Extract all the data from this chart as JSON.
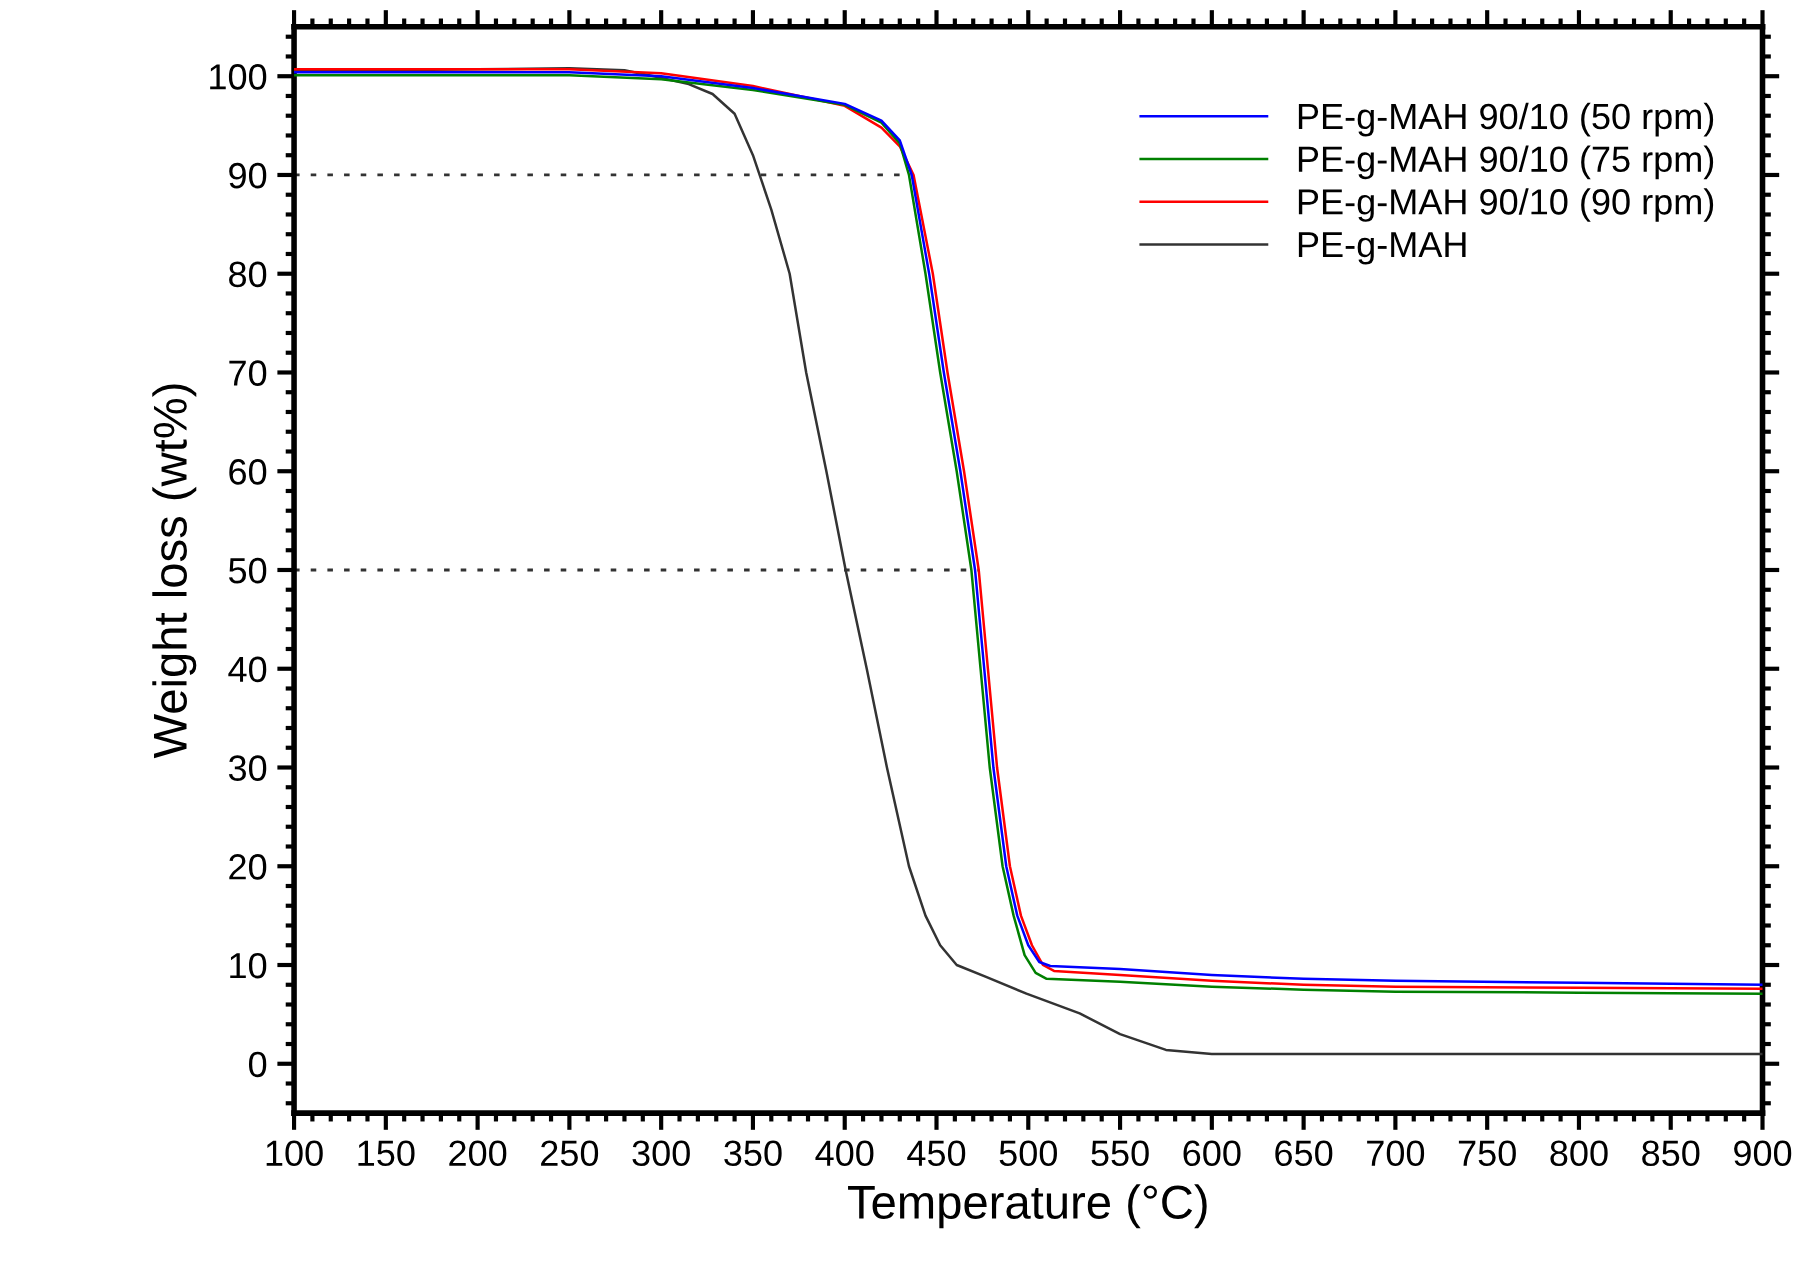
{
  "chart_data": {
    "type": "line",
    "xlabel": "Temperature (°C)",
    "ylabel": "Weight loss (wt%)",
    "xlim": [
      100,
      900
    ],
    "ylim": [
      -5,
      105
    ],
    "xticks": [
      100,
      150,
      200,
      250,
      300,
      350,
      400,
      450,
      500,
      550,
      600,
      650,
      700,
      750,
      800,
      850,
      900
    ],
    "yticks": [
      0,
      10,
      20,
      30,
      40,
      50,
      60,
      70,
      80,
      90,
      100
    ],
    "grid": false,
    "legend": "top right",
    "marker": "none",
    "line_style": "solid",
    "ref_lines": [
      {
        "axis": "y",
        "value": 90,
        "color": "#333333",
        "line_style": "dotted"
      },
      {
        "axis": "y",
        "value": 50,
        "color": "#333333",
        "line_style": "dotted"
      }
    ],
    "series": [
      {
        "name": "PE-g-MAH 90/10 (50 rpm)",
        "color": "#0000ff",
        "x": [
          100,
          200,
          250,
          300,
          350,
          400,
          420,
          430,
          436.5,
          446,
          454,
          463,
          471,
          476,
          481,
          488,
          494,
          500,
          506,
          512,
          550,
          600,
          650,
          700,
          800,
          900
        ],
        "values": [
          100.4,
          100.4,
          100.4,
          100.0,
          98.8,
          97.2,
          95.5,
          93.5,
          90,
          80,
          70,
          60,
          50,
          40,
          30,
          20,
          15,
          12,
          10.3,
          9.9,
          9.6,
          9.0,
          8.6,
          8.4,
          8.2,
          8.0
        ]
      },
      {
        "name": "PE-g-MAH 90/10 (75 rpm)",
        "color": "#008000",
        "x": [
          100,
          200,
          250,
          300,
          350,
          400,
          420,
          430,
          435,
          444,
          452,
          461,
          469,
          474,
          479,
          486,
          492,
          498,
          504,
          510,
          550,
          600,
          650,
          700,
          800,
          900
        ],
        "values": [
          100.1,
          100.1,
          100.1,
          99.7,
          98.6,
          97.1,
          95.3,
          93.2,
          90,
          80,
          70,
          60,
          50,
          40,
          30,
          20,
          15,
          11,
          9.2,
          8.6,
          8.3,
          7.8,
          7.5,
          7.3,
          7.2,
          7.1
        ]
      },
      {
        "name": "PE-g-MAH 90/10 (90 rpm)",
        "color": "#ff0000",
        "x": [
          100,
          200,
          250,
          300,
          350,
          400,
          420,
          430,
          437.5,
          448,
          456,
          465,
          473,
          478,
          483,
          490,
          496,
          502,
          508,
          514,
          550,
          600,
          650,
          700,
          800,
          900
        ],
        "values": [
          100.7,
          100.7,
          100.7,
          100.3,
          99.0,
          97.0,
          94.8,
          92.9,
          90,
          80,
          70,
          60,
          50,
          40,
          30,
          20,
          15,
          12,
          10,
          9.4,
          9.0,
          8.4,
          8.0,
          7.8,
          7.7,
          7.6
        ]
      },
      {
        "name": "PE-g-MAH",
        "color": "#333333",
        "x": [
          100,
          200,
          250,
          280,
          296,
          315,
          328,
          340,
          350,
          360,
          370,
          379,
          390,
          400.5,
          412,
          423,
          435,
          444,
          452,
          461,
          477,
          499,
          528,
          550,
          575,
          600,
          700,
          800,
          900
        ],
        "values": [
          100.5,
          100.7,
          100.8,
          100.6,
          100.0,
          99.2,
          98.2,
          96.2,
          92.0,
          86.5,
          80,
          70,
          60,
          50,
          40,
          30,
          20,
          15,
          12,
          10,
          8.8,
          7.1,
          5.1,
          3.0,
          1.4,
          1.0,
          1.0,
          1.0,
          1.0
        ]
      }
    ]
  }
}
